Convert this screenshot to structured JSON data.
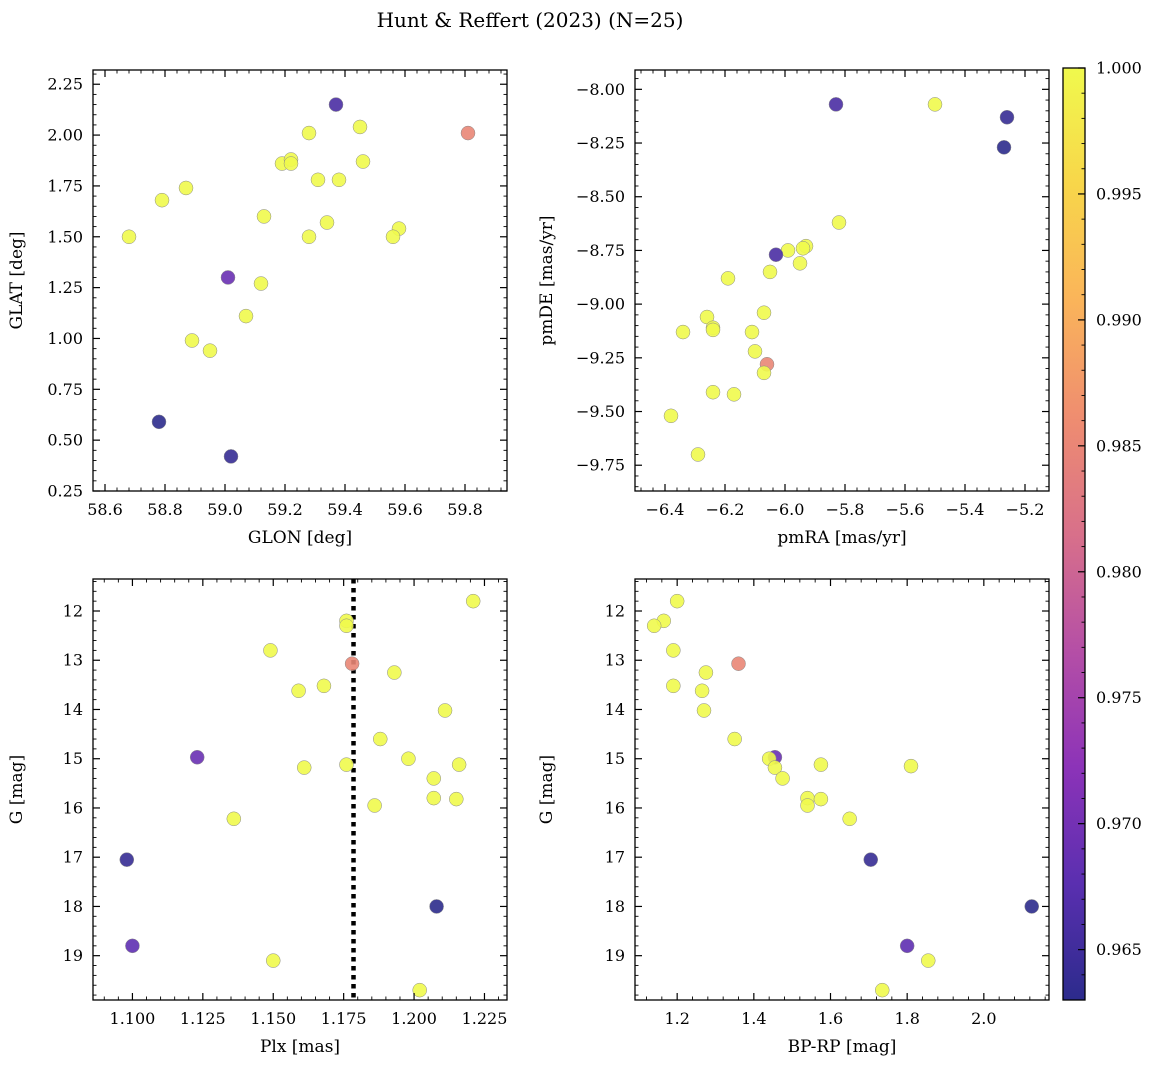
{
  "title": "Hunt & Reffert (2023) (N=25)",
  "colorbar": {
    "min": 0.963,
    "max": 1.0,
    "ticks": [
      0.965,
      0.97,
      0.975,
      0.98,
      0.985,
      0.99,
      0.995,
      1.0
    ],
    "tick_labels": [
      "0.965",
      "0.970",
      "0.975",
      "0.980",
      "0.985",
      "0.990",
      "0.995",
      "1.000"
    ],
    "stops": [
      "#2c2b8c",
      "#5a2fb0",
      "#8c33b8",
      "#b54fa6",
      "#d8708a",
      "#ef8d70",
      "#fab45a",
      "#f8d64a",
      "#f0f94d"
    ]
  },
  "chart_data": [
    {
      "type": "scatter",
      "id": "pos",
      "xlabel": "GLON [deg]",
      "ylabel": "GLAT [deg]",
      "xlim": [
        58.56,
        59.94
      ],
      "ylim": [
        0.25,
        2.32
      ],
      "xticks": [
        58.6,
        58.8,
        59.0,
        59.2,
        59.4,
        59.6,
        59.8
      ],
      "xtick_labels": [
        "58.6",
        "58.8",
        "59.0",
        "59.2",
        "59.4",
        "59.6",
        "59.8"
      ],
      "yticks": [
        0.25,
        0.5,
        0.75,
        1.0,
        1.25,
        1.5,
        1.75,
        2.0,
        2.25
      ],
      "ytick_labels": [
        "0.25",
        "0.50",
        "0.75",
        "1.00",
        "1.25",
        "1.50",
        "1.75",
        "2.00",
        "2.25"
      ],
      "points": [
        {
          "x": 59.37,
          "y": 2.15,
          "c": 0.966
        },
        {
          "x": 59.81,
          "y": 2.01,
          "c": 0.985
        },
        {
          "x": 59.45,
          "y": 2.04,
          "c": 1.0
        },
        {
          "x": 59.28,
          "y": 2.01,
          "c": 1.0
        },
        {
          "x": 59.19,
          "y": 1.86,
          "c": 1.0
        },
        {
          "x": 59.22,
          "y": 1.88,
          "c": 1.0
        },
        {
          "x": 59.22,
          "y": 1.86,
          "c": 1.0
        },
        {
          "x": 59.46,
          "y": 1.87,
          "c": 1.0
        },
        {
          "x": 59.31,
          "y": 1.78,
          "c": 1.0
        },
        {
          "x": 59.38,
          "y": 1.78,
          "c": 1.0
        },
        {
          "x": 58.87,
          "y": 1.74,
          "c": 1.0
        },
        {
          "x": 58.79,
          "y": 1.68,
          "c": 1.0
        },
        {
          "x": 59.13,
          "y": 1.6,
          "c": 1.0
        },
        {
          "x": 59.34,
          "y": 1.57,
          "c": 1.0
        },
        {
          "x": 59.58,
          "y": 1.54,
          "c": 1.0
        },
        {
          "x": 59.56,
          "y": 1.5,
          "c": 1.0
        },
        {
          "x": 59.28,
          "y": 1.5,
          "c": 1.0
        },
        {
          "x": 58.68,
          "y": 1.5,
          "c": 1.0
        },
        {
          "x": 59.01,
          "y": 1.3,
          "c": 0.969
        },
        {
          "x": 59.12,
          "y": 1.27,
          "c": 1.0
        },
        {
          "x": 59.07,
          "y": 1.11,
          "c": 1.0
        },
        {
          "x": 58.89,
          "y": 0.99,
          "c": 1.0
        },
        {
          "x": 58.95,
          "y": 0.94,
          "c": 1.0
        },
        {
          "x": 58.78,
          "y": 0.59,
          "c": 0.963
        },
        {
          "x": 59.02,
          "y": 0.42,
          "c": 0.964
        }
      ]
    },
    {
      "type": "scatter",
      "id": "pm",
      "xlabel": "pmRA [mas/yr]",
      "ylabel": "pmDE [mas/yr]",
      "xlim": [
        -6.5,
        -5.12
      ],
      "ylim": [
        -9.87,
        -7.91
      ],
      "xticks": [
        -6.4,
        -6.2,
        -6.0,
        -5.8,
        -5.6,
        -5.4,
        -5.2
      ],
      "xtick_labels": [
        "−6.4",
        "−6.2",
        "−6.0",
        "−5.8",
        "−5.6",
        "−5.4",
        "−5.2"
      ],
      "yticks": [
        -8.0,
        -8.25,
        -8.5,
        -8.75,
        -9.0,
        -9.25,
        -9.5,
        -9.75
      ],
      "ytick_labels": [
        "−8.00",
        "−8.25",
        "−8.50",
        "−8.75",
        "−9.00",
        "−9.25",
        "−9.50",
        "−9.75"
      ],
      "points": [
        {
          "x": -5.5,
          "y": -8.07,
          "c": 1.0
        },
        {
          "x": -5.83,
          "y": -8.07,
          "c": 0.966
        },
        {
          "x": -5.26,
          "y": -8.13,
          "c": 0.964
        },
        {
          "x": -5.27,
          "y": -8.27,
          "c": 0.963
        },
        {
          "x": -5.82,
          "y": -8.62,
          "c": 1.0
        },
        {
          "x": -5.93,
          "y": -8.73,
          "c": 1.0
        },
        {
          "x": -5.94,
          "y": -8.74,
          "c": 1.0
        },
        {
          "x": -5.99,
          "y": -8.75,
          "c": 1.0
        },
        {
          "x": -6.03,
          "y": -8.77,
          "c": 0.966
        },
        {
          "x": -5.95,
          "y": -8.81,
          "c": 1.0
        },
        {
          "x": -6.05,
          "y": -8.85,
          "c": 1.0
        },
        {
          "x": -6.19,
          "y": -8.88,
          "c": 1.0
        },
        {
          "x": -6.07,
          "y": -9.04,
          "c": 1.0
        },
        {
          "x": -6.26,
          "y": -9.06,
          "c": 1.0
        },
        {
          "x": -6.24,
          "y": -9.11,
          "c": 1.0
        },
        {
          "x": -6.24,
          "y": -9.12,
          "c": 1.0
        },
        {
          "x": -6.11,
          "y": -9.13,
          "c": 1.0
        },
        {
          "x": -6.34,
          "y": -9.13,
          "c": 1.0
        },
        {
          "x": -6.1,
          "y": -9.22,
          "c": 1.0
        },
        {
          "x": -6.06,
          "y": -9.28,
          "c": 0.985
        },
        {
          "x": -6.07,
          "y": -9.32,
          "c": 1.0
        },
        {
          "x": -6.24,
          "y": -9.41,
          "c": 1.0
        },
        {
          "x": -6.17,
          "y": -9.42,
          "c": 1.0
        },
        {
          "x": -6.38,
          "y": -9.52,
          "c": 1.0
        },
        {
          "x": -6.29,
          "y": -9.7,
          "c": 1.0
        }
      ]
    },
    {
      "type": "scatter",
      "id": "plx",
      "xlabel": "Plx [mas]",
      "ylabel": "G [mag]",
      "xlim": [
        1.086,
        1.233
      ],
      "ylim": [
        19.9,
        11.35
      ],
      "vline": 1.1785,
      "xticks": [
        1.1,
        1.125,
        1.15,
        1.175,
        1.2,
        1.225
      ],
      "xtick_labels": [
        "1.100",
        "1.125",
        "1.150",
        "1.175",
        "1.200",
        "1.225"
      ],
      "yticks": [
        12,
        13,
        14,
        15,
        16,
        17,
        18,
        19
      ],
      "ytick_labels": [
        "12",
        "13",
        "14",
        "15",
        "16",
        "17",
        "18",
        "19"
      ],
      "points": [
        {
          "x": 1.221,
          "y": 11.8,
          "c": 1.0
        },
        {
          "x": 1.176,
          "y": 12.2,
          "c": 1.0
        },
        {
          "x": 1.176,
          "y": 12.3,
          "c": 1.0
        },
        {
          "x": 1.149,
          "y": 12.8,
          "c": 1.0
        },
        {
          "x": 1.178,
          "y": 13.07,
          "c": 0.985
        },
        {
          "x": 1.193,
          "y": 13.25,
          "c": 1.0
        },
        {
          "x": 1.168,
          "y": 13.52,
          "c": 1.0
        },
        {
          "x": 1.159,
          "y": 13.62,
          "c": 1.0
        },
        {
          "x": 1.211,
          "y": 14.02,
          "c": 1.0
        },
        {
          "x": 1.188,
          "y": 14.6,
          "c": 1.0
        },
        {
          "x": 1.123,
          "y": 14.97,
          "c": 0.969
        },
        {
          "x": 1.198,
          "y": 15.0,
          "c": 1.0
        },
        {
          "x": 1.176,
          "y": 15.12,
          "c": 1.0
        },
        {
          "x": 1.216,
          "y": 15.12,
          "c": 1.0
        },
        {
          "x": 1.161,
          "y": 15.18,
          "c": 1.0
        },
        {
          "x": 1.207,
          "y": 15.4,
          "c": 1.0
        },
        {
          "x": 1.207,
          "y": 15.8,
          "c": 1.0
        },
        {
          "x": 1.215,
          "y": 15.82,
          "c": 1.0
        },
        {
          "x": 1.186,
          "y": 15.95,
          "c": 1.0
        },
        {
          "x": 1.136,
          "y": 16.22,
          "c": 1.0
        },
        {
          "x": 1.098,
          "y": 17.05,
          "c": 0.964
        },
        {
          "x": 1.208,
          "y": 18.0,
          "c": 0.963
        },
        {
          "x": 1.1,
          "y": 18.8,
          "c": 0.968
        },
        {
          "x": 1.15,
          "y": 19.1,
          "c": 1.0
        },
        {
          "x": 1.202,
          "y": 19.7,
          "c": 1.0
        }
      ]
    },
    {
      "type": "scatter",
      "id": "cmd",
      "xlabel": "BP-RP [mag]",
      "ylabel": "G [mag]",
      "xlim": [
        1.09,
        2.17
      ],
      "ylim": [
        19.9,
        11.35
      ],
      "xticks": [
        1.2,
        1.4,
        1.6,
        1.8,
        2.0
      ],
      "xtick_labels": [
        "1.2",
        "1.4",
        "1.6",
        "1.8",
        "2.0"
      ],
      "yticks": [
        12,
        13,
        14,
        15,
        16,
        17,
        18,
        19
      ],
      "ytick_labels": [
        "12",
        "13",
        "14",
        "15",
        "16",
        "17",
        "18",
        "19"
      ],
      "points": [
        {
          "x": 1.2,
          "y": 11.8,
          "c": 1.0
        },
        {
          "x": 1.165,
          "y": 12.2,
          "c": 1.0
        },
        {
          "x": 1.14,
          "y": 12.3,
          "c": 1.0
        },
        {
          "x": 1.19,
          "y": 12.8,
          "c": 1.0
        },
        {
          "x": 1.36,
          "y": 13.07,
          "c": 0.985
        },
        {
          "x": 1.275,
          "y": 13.25,
          "c": 1.0
        },
        {
          "x": 1.19,
          "y": 13.52,
          "c": 1.0
        },
        {
          "x": 1.265,
          "y": 13.62,
          "c": 1.0
        },
        {
          "x": 1.27,
          "y": 14.02,
          "c": 1.0
        },
        {
          "x": 1.35,
          "y": 14.6,
          "c": 1.0
        },
        {
          "x": 1.455,
          "y": 14.97,
          "c": 0.969
        },
        {
          "x": 1.44,
          "y": 15.0,
          "c": 1.0
        },
        {
          "x": 1.575,
          "y": 15.12,
          "c": 1.0
        },
        {
          "x": 1.81,
          "y": 15.15,
          "c": 1.0
        },
        {
          "x": 1.455,
          "y": 15.18,
          "c": 1.0
        },
        {
          "x": 1.475,
          "y": 15.4,
          "c": 1.0
        },
        {
          "x": 1.54,
          "y": 15.8,
          "c": 1.0
        },
        {
          "x": 1.575,
          "y": 15.82,
          "c": 1.0
        },
        {
          "x": 1.54,
          "y": 15.95,
          "c": 1.0
        },
        {
          "x": 1.65,
          "y": 16.22,
          "c": 1.0
        },
        {
          "x": 1.705,
          "y": 17.05,
          "c": 0.964
        },
        {
          "x": 2.125,
          "y": 18.0,
          "c": 0.963
        },
        {
          "x": 1.8,
          "y": 18.8,
          "c": 0.968
        },
        {
          "x": 1.855,
          "y": 19.1,
          "c": 1.0
        },
        {
          "x": 1.735,
          "y": 19.7,
          "c": 1.0
        }
      ]
    }
  ]
}
